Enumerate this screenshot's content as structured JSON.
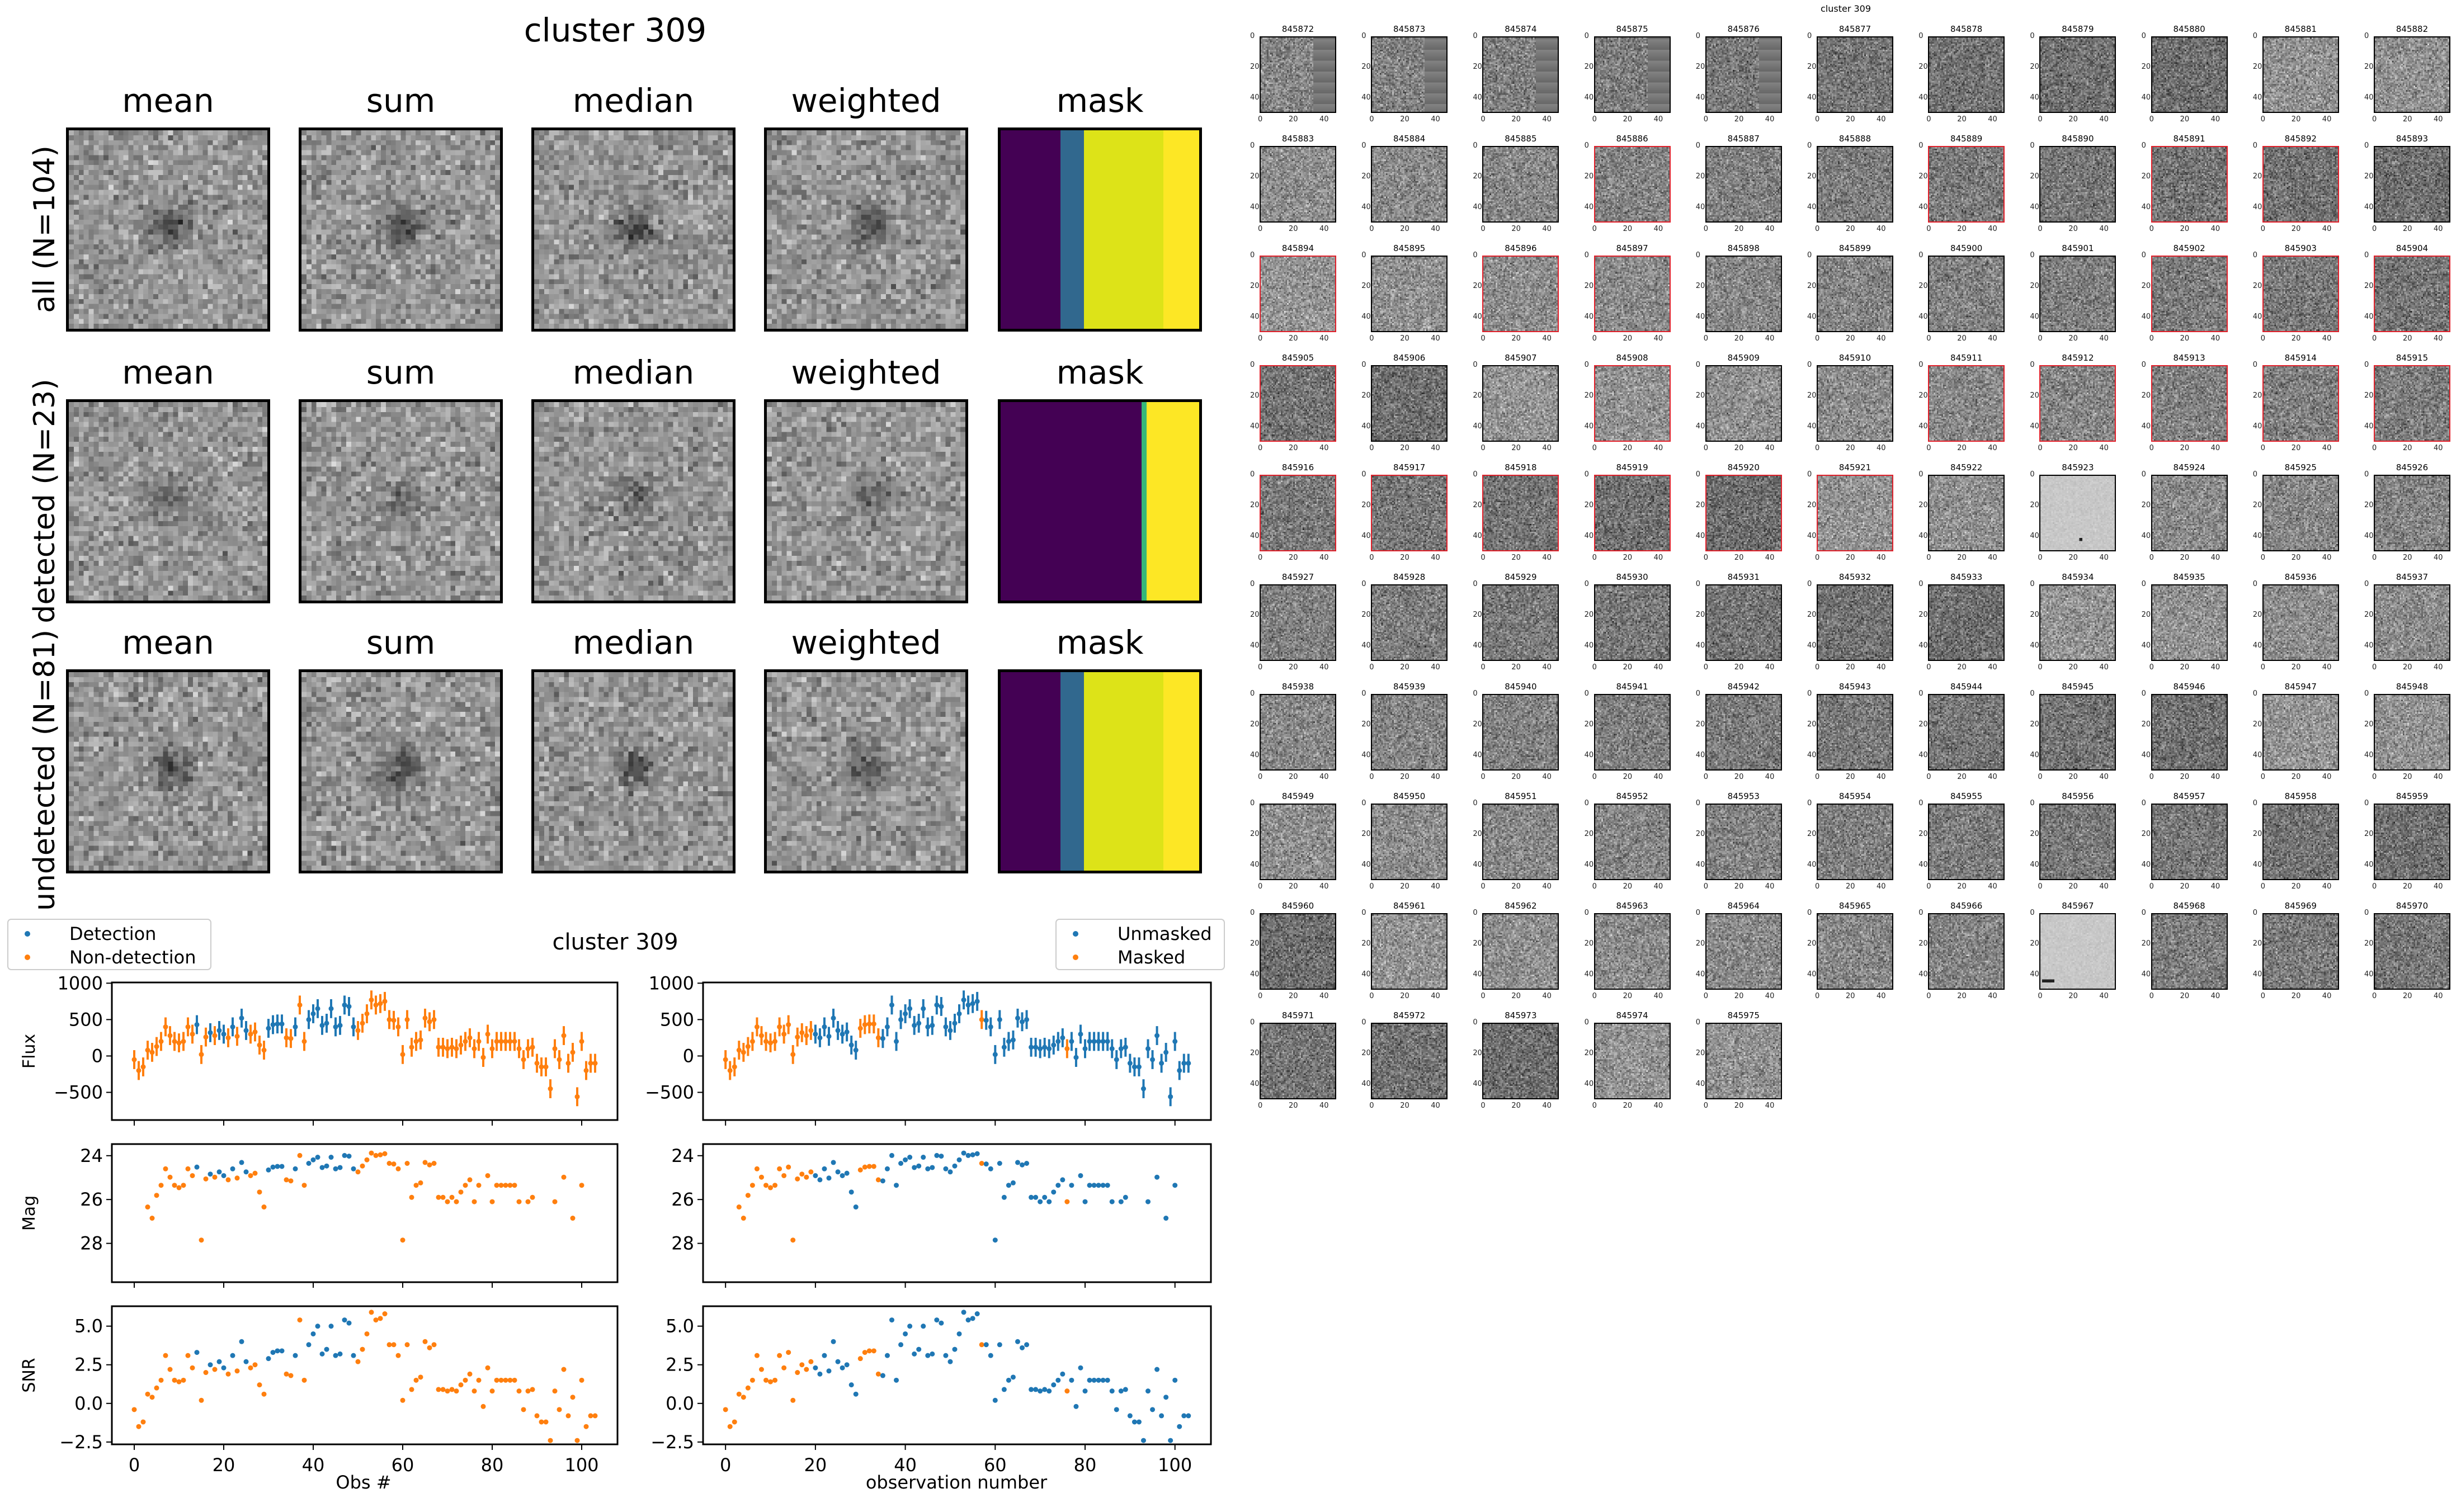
{
  "title": "cluster 309",
  "stamp_columns": [
    "mean",
    "sum",
    "median",
    "weighted",
    "mask"
  ],
  "stamp_rows": [
    {
      "label": "all (N=104)",
      "mask_segments": [
        {
          "frac": 0.3,
          "color": "#440154"
        },
        {
          "frac": 0.12,
          "color": "#31688e"
        },
        {
          "frac": 0.4,
          "color": "#dde318"
        },
        {
          "frac": 0.18,
          "color": "#fde725"
        }
      ]
    },
    {
      "label": "detected (N=23)",
      "mask_segments": [
        {
          "frac": 0.71,
          "color": "#440154"
        },
        {
          "frac": 0.025,
          "color": "#35b779"
        },
        {
          "frac": 0.265,
          "color": "#fde725"
        }
      ]
    },
    {
      "label": "undetected (N=81)",
      "mask_segments": [
        {
          "frac": 0.3,
          "color": "#440154"
        },
        {
          "frac": 0.12,
          "color": "#31688e"
        },
        {
          "frac": 0.4,
          "color": "#dde318"
        },
        {
          "frac": 0.18,
          "color": "#fde725"
        }
      ]
    }
  ],
  "thumbs": {
    "title": "cluster 309",
    "first_id": 845872,
    "count": 104,
    "columns": 11,
    "ticks": [
      "0",
      "20",
      "40"
    ],
    "highlighted_ids": [
      845886,
      845889,
      845891,
      845892,
      845894,
      845896,
      845897,
      845902,
      845903,
      845904,
      845905,
      845908,
      845911,
      845912,
      845913,
      845914,
      845915,
      845916,
      845917,
      845918,
      845919,
      845920,
      845921
    ]
  },
  "colors": {
    "blue": "#1f77b4",
    "orange": "#ff7f0e",
    "highlight": "#e0202a"
  },
  "chart_data": {
    "type": "scatter",
    "title": "cluster 309",
    "legend_left": [
      "Detection",
      "Non-detection"
    ],
    "legend_right": [
      "Unmasked",
      "Masked"
    ],
    "xlabel_left": "Obs #",
    "xlabel_right": "observation number",
    "xlim": [
      -5,
      108
    ],
    "xticks": [
      0,
      20,
      40,
      60,
      80,
      100
    ],
    "panels": [
      {
        "ylabel": "Flux",
        "ylim": [
          -880,
          1010
        ],
        "yticks": [
          -500,
          0,
          500,
          1000
        ],
        "yticklabels": [
          "−500",
          "0",
          "500",
          "1000"
        ],
        "invert": false,
        "key": "flux"
      },
      {
        "ylabel": "Mag",
        "ylim": [
          23.47,
          29.77
        ],
        "yticks": [
          24,
          26,
          28
        ],
        "yticklabels": [
          "24",
          "26",
          "28"
        ],
        "invert": true,
        "key": "mag"
      },
      {
        "ylabel": "SNR",
        "ylim": [
          -2.65,
          6.29
        ],
        "yticks": [
          -2.5,
          0,
          2.5,
          5
        ],
        "yticklabels": [
          "−2.5",
          "0.0",
          "2.5",
          "5.0"
        ],
        "invert": false,
        "key": "snr"
      }
    ],
    "flux_err": 130,
    "flux": [
      -50,
      -200,
      -150,
      80,
      50,
      130,
      200,
      400,
      280,
      200,
      180,
      200,
      400,
      300,
      430,
      20,
      260,
      320,
      280,
      350,
      300,
      250,
      400,
      270,
      520,
      350,
      300,
      330,
      150,
      80,
      380,
      430,
      440,
      440,
      250,
      240,
      400,
      700,
      200,
      500,
      580,
      650,
      420,
      450,
      650,
      400,
      420,
      700,
      680,
      400,
      350,
      450,
      580,
      770,
      700,
      720,
      750,
      500,
      490,
      400,
      20,
      500,
      120,
      200,
      220,
      520,
      470,
      500,
      120,
      120,
      100,
      120,
      100,
      150,
      200,
      250,
      100,
      200,
      -20,
      300,
      100,
      200,
      200,
      200,
      200,
      200,
      100,
      -50,
      100,
      120,
      -100,
      -150,
      -150,
      -450,
      100,
      -50,
      280,
      -100,
      50,
      -560,
      200,
      -200,
      -100,
      -100
    ],
    "mag": [
      null,
      null,
      null,
      26.34,
      26.85,
      25.81,
      25.35,
      24.6,
      24.98,
      25.35,
      25.46,
      25.35,
      24.6,
      24.91,
      24.52,
      27.85,
      25.06,
      24.84,
      24.98,
      24.74,
      24.91,
      25.1,
      24.6,
      25.02,
      24.31,
      24.74,
      24.91,
      24.8,
      25.66,
      26.34,
      24.65,
      24.52,
      24.49,
      24.49,
      25.1,
      25.15,
      24.6,
      23.99,
      25.35,
      24.35,
      24.19,
      24.07,
      24.54,
      24.47,
      24.07,
      24.6,
      24.54,
      23.99,
      24.02,
      24.6,
      24.74,
      24.47,
      24.19,
      23.88,
      23.99,
      23.96,
      23.91,
      24.35,
      24.38,
      24.6,
      27.85,
      24.35,
      25.9,
      25.35,
      25.24,
      24.31,
      24.42,
      24.35,
      25.9,
      25.9,
      26.1,
      25.9,
      26.1,
      25.66,
      25.35,
      25.1,
      26.1,
      25.35,
      null,
      24.91,
      26.1,
      25.35,
      25.35,
      25.35,
      25.35,
      25.35,
      26.1,
      null,
      26.1,
      25.9,
      null,
      null,
      null,
      null,
      26.1,
      null,
      24.98,
      null,
      26.85,
      null,
      25.35,
      null,
      null,
      null
    ],
    "snr": [
      -0.4,
      -1.5,
      -1.2,
      0.6,
      0.4,
      1.0,
      1.5,
      3.1,
      2.2,
      1.5,
      1.4,
      1.5,
      3.1,
      2.3,
      3.3,
      0.2,
      2.0,
      2.5,
      2.2,
      2.7,
      2.3,
      1.9,
      3.1,
      2.1,
      4.0,
      2.7,
      2.3,
      2.5,
      1.2,
      0.6,
      2.9,
      3.3,
      3.4,
      3.4,
      1.9,
      1.8,
      3.1,
      5.4,
      1.5,
      3.8,
      4.5,
      5.0,
      3.2,
      3.5,
      5.0,
      3.1,
      3.2,
      5.4,
      5.2,
      3.1,
      2.7,
      3.5,
      4.5,
      5.9,
      5.4,
      5.5,
      5.8,
      3.8,
      3.8,
      3.1,
      0.2,
      3.8,
      0.9,
      1.5,
      1.7,
      4.0,
      3.6,
      3.8,
      0.9,
      0.9,
      0.8,
      0.9,
      0.8,
      1.2,
      1.5,
      1.9,
      0.8,
      1.5,
      -0.2,
      2.3,
      0.8,
      1.5,
      1.5,
      1.5,
      1.5,
      1.5,
      0.8,
      -0.4,
      0.8,
      0.9,
      -0.8,
      -1.2,
      -1.2,
      -2.4,
      0.8,
      -0.4,
      2.2,
      -0.8,
      0.4,
      -2.4,
      1.5,
      -1.5,
      -0.8,
      -0.8
    ],
    "detected_idx": [
      14,
      17,
      19,
      20,
      22,
      24,
      25,
      30,
      31,
      32,
      33,
      36,
      39,
      40,
      41,
      42,
      43,
      44,
      45,
      46,
      47,
      48,
      49
    ],
    "masked_idx": [
      0,
      1,
      2,
      3,
      4,
      5,
      6,
      7,
      8,
      9,
      10,
      11,
      12,
      13,
      14,
      15,
      16,
      17,
      18,
      19,
      30,
      31,
      32,
      33,
      34,
      57,
      76
    ]
  }
}
